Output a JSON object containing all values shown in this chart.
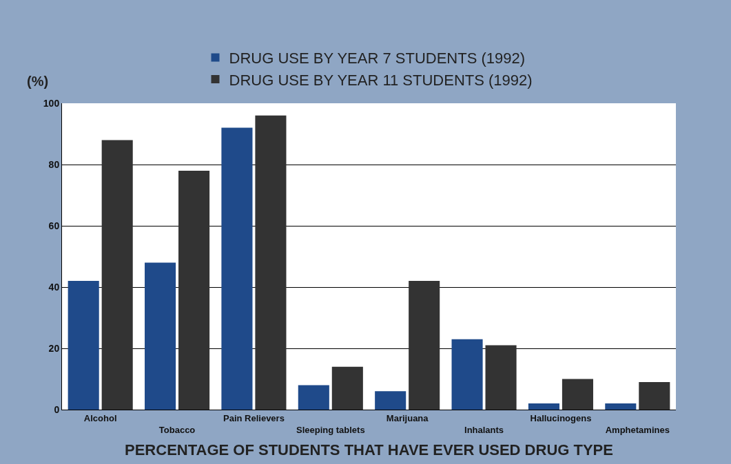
{
  "chart_data": {
    "type": "bar",
    "xlabel": "PERCENTAGE OF STUDENTS THAT HAVE EVER USED DRUG TYPE",
    "ylabel": "(%)",
    "categories": [
      "Alcohol",
      "Tobacco",
      "Pain Relievers",
      "Sleeping tablets",
      "Marijuana",
      "Inhalants",
      "Hallucinogens",
      "Amphetamines"
    ],
    "series": [
      {
        "name": "DRUG USE BY YEAR 7 STUDENTS (1992)",
        "color": "#1f4a8a",
        "values": [
          42,
          48,
          92,
          8,
          6,
          23,
          2,
          2
        ]
      },
      {
        "name": "DRUG USE BY YEAR 11 STUDENTS (1992)",
        "color": "#333333",
        "values": [
          88,
          78,
          96,
          14,
          42,
          21,
          10,
          9
        ]
      }
    ],
    "ylim": [
      0,
      100
    ],
    "yticks": [
      0,
      20,
      40,
      60,
      80,
      100
    ],
    "grid": "y",
    "legend": "top"
  }
}
